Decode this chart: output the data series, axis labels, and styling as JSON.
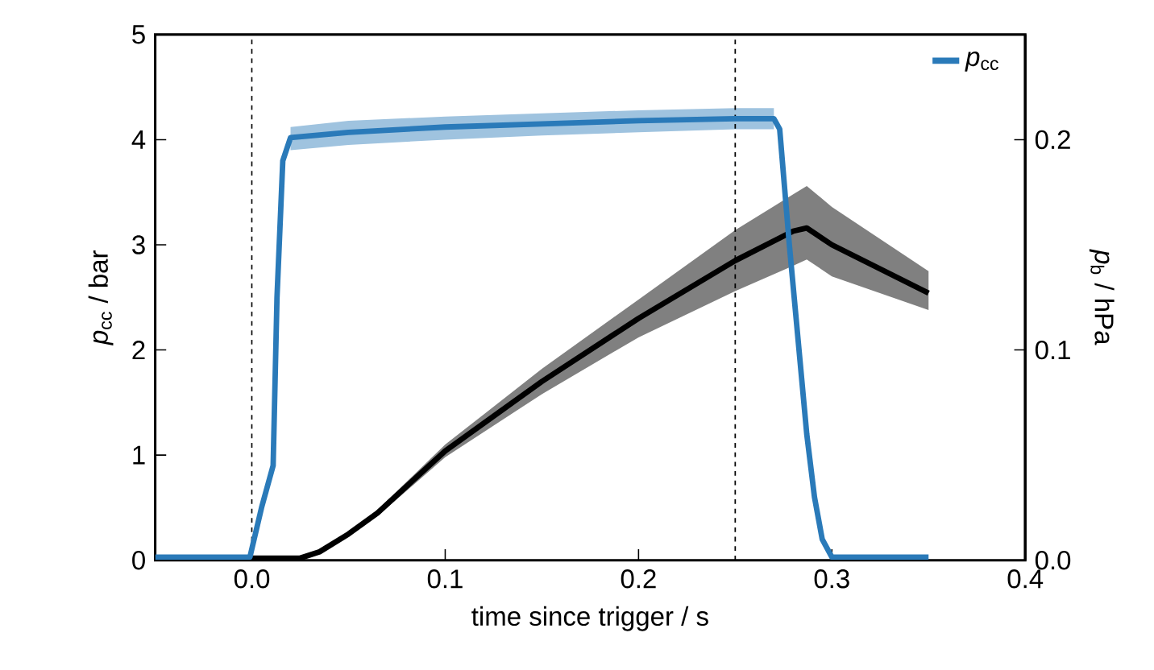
{
  "chart_data": {
    "type": "line",
    "xlabel": "time since trigger / s",
    "ylabel": "*p*$_{cc}$ / bar",
    "y2label": "*p*$_{b}$ / hPa",
    "xlim": [
      -0.05,
      0.4
    ],
    "xticks": [
      {
        "value": 0,
        "label": "0.0"
      },
      0.1,
      0.2,
      0.3,
      0.4
    ],
    "ylim": [
      0,
      5
    ],
    "yticks": [
      0,
      1,
      2,
      3,
      4,
      5
    ],
    "y2lim": [
      0,
      0.25
    ],
    "y2ticks": [
      {
        "value": 0,
        "label": "0.0"
      },
      0.1,
      0.2
    ],
    "legend": "top right",
    "grid": false,
    "ref_lines": [
      {
        "axis": "x",
        "value": 0,
        "line_style": "dashed",
        "color": "#000000"
      },
      {
        "axis": "x",
        "value": 0.25,
        "line_style": "dashed",
        "color": "#000000"
      }
    ],
    "series": [
      {
        "name": "*p*$_{cc}$",
        "color": "#2a7ab9",
        "axis": "y",
        "x": [
          -0.05,
          -0.001,
          0.005,
          0.011,
          0.013,
          0.016,
          0.02,
          0.05,
          0.1,
          0.15,
          0.2,
          0.25,
          0.27,
          0.273,
          0.278,
          0.283,
          0.287,
          0.291,
          0.295,
          0.3,
          0.35
        ],
        "values": [
          0.03,
          0.03,
          0.5,
          0.9,
          2.5,
          3.8,
          4.02,
          4.07,
          4.12,
          4.15,
          4.18,
          4.2,
          4.2,
          4.1,
          3.0,
          2.0,
          1.2,
          0.6,
          0.2,
          0.03,
          0.03
        ],
        "lower": [
          null,
          null,
          null,
          null,
          null,
          null,
          3.9,
          3.95,
          4.0,
          4.04,
          4.07,
          4.1,
          4.1,
          null,
          null,
          null,
          null,
          null,
          null,
          null,
          null
        ],
        "upper": [
          null,
          null,
          null,
          null,
          null,
          null,
          4.12,
          4.18,
          4.22,
          4.25,
          4.28,
          4.3,
          4.3,
          null,
          null,
          null,
          null,
          null,
          null,
          null,
          null
        ]
      },
      {
        "color": "#000000",
        "axis": "y2",
        "x": [
          -0.05,
          0.025,
          0.035,
          0.05,
          0.065,
          0.1,
          0.15,
          0.2,
          0.25,
          0.28,
          0.287,
          0.3,
          0.35
        ],
        "values": [
          0.001,
          0.001,
          0.004,
          0.0125,
          0.0225,
          0.052,
          0.085,
          0.115,
          0.1425,
          0.1565,
          0.158,
          0.15,
          0.127
        ],
        "lower": [
          0.001,
          0.001,
          0.004,
          0.0115,
          0.021,
          0.049,
          0.079,
          0.106,
          0.128,
          0.14,
          0.143,
          0.135,
          0.119
        ],
        "upper": [
          0.001,
          0.001,
          0.004,
          0.0135,
          0.024,
          0.055,
          0.091,
          0.124,
          0.157,
          0.174,
          0.178,
          0.168,
          0.1375
        ]
      }
    ]
  }
}
